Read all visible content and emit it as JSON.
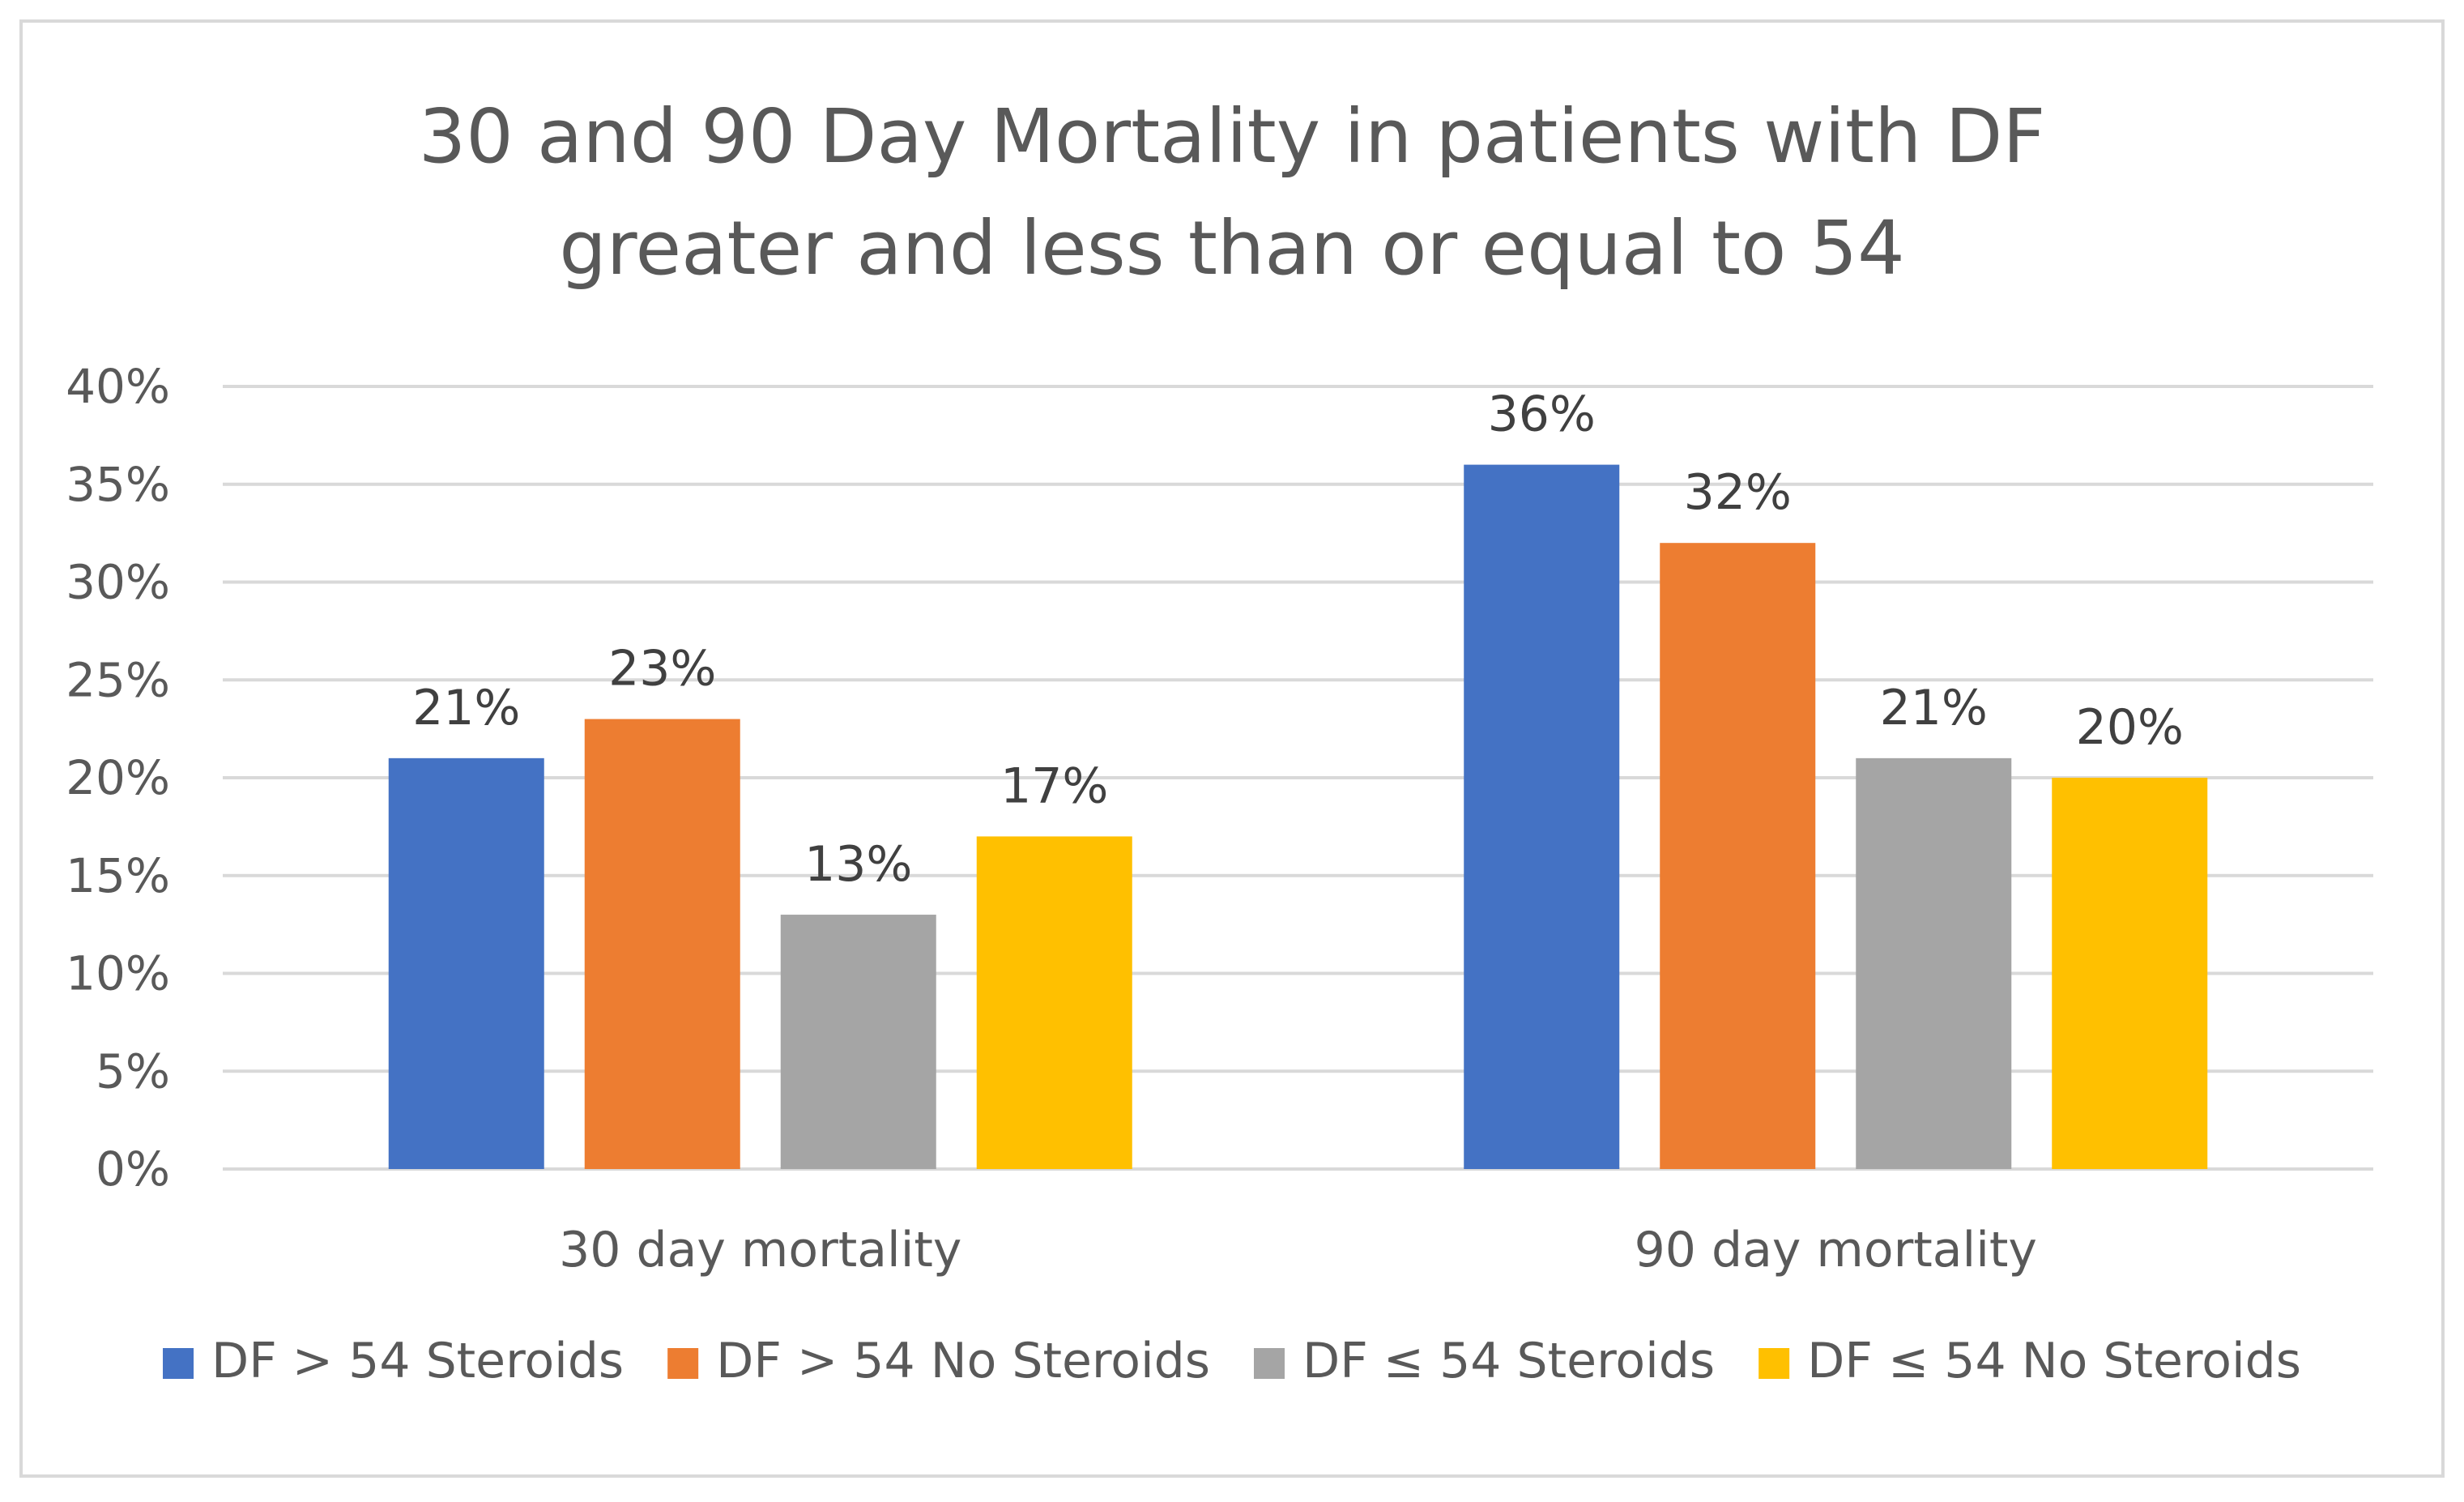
{
  "chart_data": {
    "type": "bar",
    "title_lines": [
      "30 and 90 Day Mortality in patients with DF",
      "greater and less than or equal to 54"
    ],
    "categories": [
      "30 day mortality",
      "90 day mortality"
    ],
    "series": [
      {
        "name": "DF > 54 Steroids",
        "values": [
          21,
          36
        ],
        "labels": [
          "21%",
          "36%"
        ],
        "color": "#4472C4"
      },
      {
        "name": "DF > 54 No Steroids",
        "values": [
          23,
          32
        ],
        "labels": [
          "23%",
          "32%"
        ],
        "color": "#ED7D31"
      },
      {
        "name": "DF ≤ 54 Steroids",
        "values": [
          13,
          21
        ],
        "labels": [
          "13%",
          "21%"
        ],
        "color": "#A5A5A5"
      },
      {
        "name": "DF ≤ 54 No Steroids",
        "values": [
          17,
          20
        ],
        "labels": [
          "17%",
          "20%"
        ],
        "color": "#FFC000"
      }
    ],
    "y_ticks": [
      0,
      5,
      10,
      15,
      20,
      25,
      30,
      35,
      40
    ],
    "y_tick_labels": [
      "0%",
      "5%",
      "10%",
      "15%",
      "20%",
      "25%",
      "30%",
      "35%",
      "40%"
    ],
    "ylim": [
      0,
      40
    ],
    "grid": true,
    "gridline_color": "#d9d9d9",
    "legend_position": "bottom"
  }
}
